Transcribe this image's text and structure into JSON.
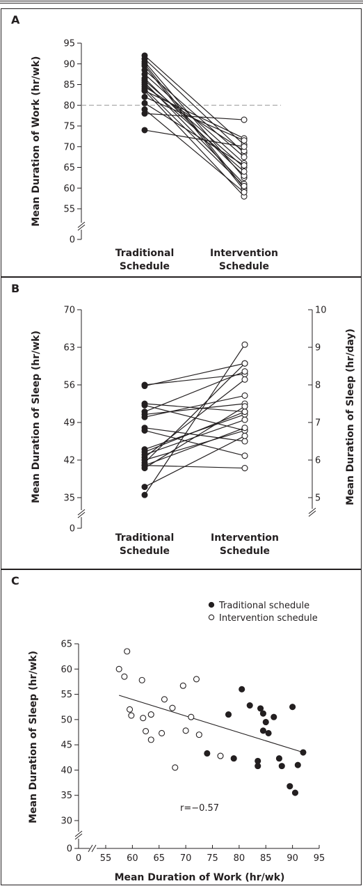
{
  "chart_data": [
    {
      "panel": "A",
      "type": "line",
      "ylabel": "Mean Duration of Work (hr/wk)",
      "categories": [
        "Traditional\nSchedule",
        "Intervention\nSchedule"
      ],
      "yticks": [
        0,
        55,
        60,
        65,
        70,
        75,
        80,
        85,
        90,
        95
      ],
      "ylim": [
        55,
        95
      ],
      "axis_break": true,
      "reference_line_y": 80,
      "colors": {
        "traditional": "#231f20",
        "intervention": "#ffffff",
        "reference": "#aaaaaa"
      },
      "pairs": [
        [
          92.0,
          70.5
        ],
        [
          91.2,
          68.5
        ],
        [
          90.5,
          62.5
        ],
        [
          90.0,
          60.0
        ],
        [
          89.5,
          59.5
        ],
        [
          88.5,
          67.5
        ],
        [
          87.5,
          66.0
        ],
        [
          86.5,
          63.0
        ],
        [
          86.0,
          65.0
        ],
        [
          85.5,
          61.0
        ],
        [
          85.0,
          64.0
        ],
        [
          84.5,
          69.0
        ],
        [
          84.0,
          60.5
        ],
        [
          83.5,
          72.0
        ],
        [
          83.5,
          58.0
        ],
        [
          82.0,
          71.5
        ],
        [
          80.5,
          65.5
        ],
        [
          79.0,
          59.0
        ],
        [
          78.0,
          76.5
        ],
        [
          74.0,
          70.0
        ]
      ]
    },
    {
      "panel": "B",
      "type": "line",
      "ylabel": "Mean Duration of Sleep (hr/wk)",
      "ylabel_right": "Mean Duration of Sleep (hr/day)",
      "categories": [
        "Traditional\nSchedule",
        "Intervention\nSchedule"
      ],
      "yticks": [
        0,
        35,
        42,
        49,
        56,
        63,
        70
      ],
      "yticks_right": [
        5,
        6,
        7,
        8,
        9,
        10
      ],
      "ylim": [
        35,
        70
      ],
      "axis_break": true,
      "colors": {
        "traditional": "#231f20",
        "intervention": "#ffffff"
      },
      "pairs": [
        [
          56.0,
          58.0
        ],
        [
          55.8,
          60.0
        ],
        [
          52.5,
          51.0
        ],
        [
          52.2,
          47.5
        ],
        [
          51.0,
          58.5
        ],
        [
          50.5,
          52.5
        ],
        [
          50.0,
          54.0
        ],
        [
          48.0,
          45.5
        ],
        [
          47.5,
          42.8
        ],
        [
          44.0,
          50.5
        ],
        [
          43.5,
          51.0
        ],
        [
          42.5,
          57.0
        ],
        [
          42.0,
          47.5
        ],
        [
          41.5,
          60.0
        ],
        [
          41.0,
          40.5
        ],
        [
          40.5,
          52.0
        ],
        [
          37.0,
          46.5
        ],
        [
          35.5,
          63.5
        ],
        [
          41.0,
          48.0
        ],
        [
          43.0,
          49.5
        ]
      ]
    },
    {
      "panel": "C",
      "type": "scatter",
      "xlabel": "Mean Duration of Work (hr/wk)",
      "ylabel": "Mean Duration of Sleep (hr/wk)",
      "xticks": [
        0,
        55,
        60,
        65,
        70,
        75,
        80,
        85,
        90,
        95
      ],
      "yticks": [
        0,
        30,
        35,
        40,
        45,
        50,
        55,
        60,
        65
      ],
      "xlim": [
        55,
        95
      ],
      "ylim": [
        30,
        65
      ],
      "axis_break": true,
      "annotation": "r=−0.57",
      "legend": [
        "Traditional schedule",
        "Intervention schedule"
      ],
      "legend_position": "top-right",
      "colors": {
        "traditional": "#231f20",
        "intervention": "#ffffff"
      },
      "fit_line": [
        [
          57.5,
          54.8
        ],
        [
          92.0,
          43.5
        ]
      ],
      "series": [
        {
          "name": "Traditional schedule",
          "points": [
            [
              74.0,
              43.3
            ],
            [
              78.0,
              51.0
            ],
            [
              79.0,
              42.3
            ],
            [
              80.5,
              56.0
            ],
            [
              82.0,
              52.8
            ],
            [
              83.5,
              41.8
            ],
            [
              83.5,
              40.8
            ],
            [
              84.0,
              52.2
            ],
            [
              84.5,
              47.8
            ],
            [
              84.5,
              51.2
            ],
            [
              85.0,
              49.5
            ],
            [
              85.5,
              47.3
            ],
            [
              86.5,
              50.5
            ],
            [
              87.5,
              42.3
            ],
            [
              88.0,
              40.8
            ],
            [
              89.5,
              36.8
            ],
            [
              90.0,
              52.5
            ],
            [
              90.5,
              35.5
            ],
            [
              91.0,
              41.0
            ],
            [
              92.0,
              43.5
            ]
          ]
        },
        {
          "name": "Intervention schedule",
          "points": [
            [
              57.5,
              60.0
            ],
            [
              58.5,
              58.5
            ],
            [
              59.0,
              63.5
            ],
            [
              59.5,
              52.0
            ],
            [
              59.8,
              50.8
            ],
            [
              61.8,
              57.8
            ],
            [
              62.0,
              50.3
            ],
            [
              62.5,
              47.7
            ],
            [
              63.5,
              51.0
            ],
            [
              63.5,
              46.0
            ],
            [
              65.5,
              47.3
            ],
            [
              66.0,
              54.0
            ],
            [
              67.5,
              52.3
            ],
            [
              68.0,
              40.5
            ],
            [
              69.5,
              56.7
            ],
            [
              70.0,
              47.8
            ],
            [
              71.0,
              50.5
            ],
            [
              72.0,
              58.0
            ],
            [
              72.5,
              47.0
            ],
            [
              76.5,
              42.8
            ]
          ]
        }
      ]
    }
  ]
}
